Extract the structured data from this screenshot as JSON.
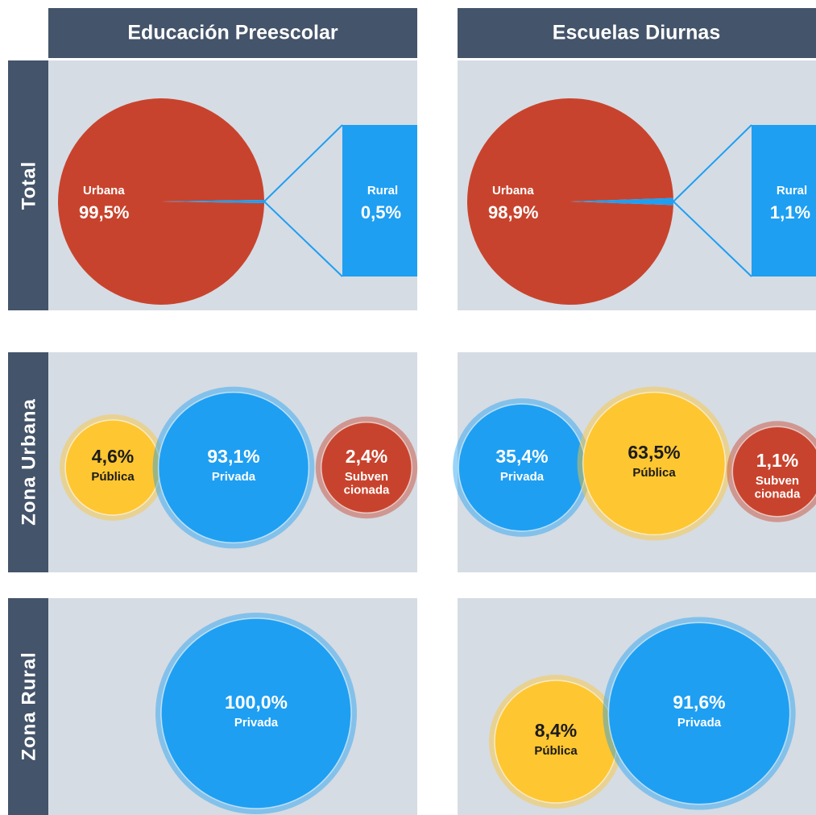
{
  "column_titles": [
    "Educación Preescolar",
    "Escuelas Diurnas"
  ],
  "row_titles": [
    "Total",
    "Zona Urbana",
    "Zona Rural"
  ],
  "chart_data": [
    {
      "type": "pie",
      "categories": [
        "Urbana",
        "Rural"
      ],
      "values": [
        99.5,
        0.5
      ],
      "value_labels": [
        "99,5%",
        "0,5%"
      ],
      "colors": [
        "#c8432d",
        "#1e9ff2"
      ]
    },
    {
      "type": "pie",
      "categories": [
        "Urbana",
        "Rural"
      ],
      "values": [
        98.9,
        1.1
      ],
      "value_labels": [
        "98,9%",
        "1,1%"
      ],
      "colors": [
        "#c8432d",
        "#1e9ff2"
      ]
    },
    {
      "type": "bubble",
      "categories": [
        "Pública",
        "Privada",
        "Subven\ncionada"
      ],
      "values": [
        4.6,
        93.1,
        2.4
      ],
      "value_labels": [
        "4,6%",
        "93,1%",
        "2,4%"
      ],
      "colors": [
        "#fec630",
        "#1e9ff2",
        "#c8432d"
      ]
    },
    {
      "type": "bubble",
      "categories": [
        "Privada",
        "Pública",
        "Subven\ncionada"
      ],
      "values": [
        35.4,
        63.5,
        1.1
      ],
      "value_labels": [
        "35,4%",
        "63,5%",
        "1,1%"
      ],
      "colors": [
        "#1e9ff2",
        "#fec630",
        "#c8432d"
      ]
    },
    {
      "type": "bubble",
      "categories": [
        "Privada"
      ],
      "values": [
        100.0
      ],
      "value_labels": [
        "100,0%"
      ],
      "colors": [
        "#1e9ff2"
      ]
    },
    {
      "type": "bubble",
      "categories": [
        "Pública",
        "Privada"
      ],
      "values": [
        8.4,
        91.6
      ],
      "value_labels": [
        "8,4%",
        "91,6%"
      ],
      "colors": [
        "#fec630",
        "#1e9ff2"
      ]
    }
  ]
}
